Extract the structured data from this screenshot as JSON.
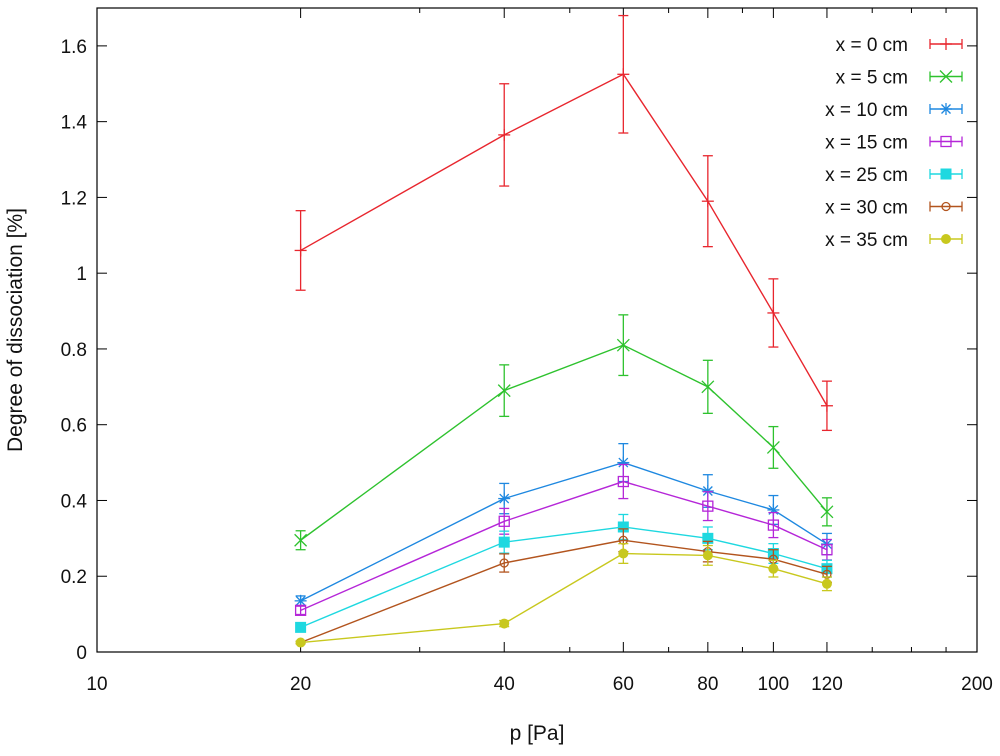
{
  "chart_data": {
    "type": "line",
    "title": "",
    "xlabel": "p [Pa]",
    "ylabel": "Degree of dissociation [%]",
    "x_scale": "log",
    "xlim": [
      10,
      200
    ],
    "ylim": [
      0,
      1.7
    ],
    "x_ticks": [
      10,
      20,
      40,
      60,
      80,
      100,
      120,
      200
    ],
    "x_tick_labels": [
      "10",
      "20",
      "40",
      "60",
      "80",
      "100",
      "120",
      "200"
    ],
    "y_ticks": [
      0,
      0.2,
      0.4,
      0.6,
      0.8,
      1,
      1.2,
      1.4,
      1.6
    ],
    "y_tick_labels": [
      "0",
      "0.2",
      "0.4",
      "0.6",
      "0.8",
      "1",
      "1.2",
      "1.4",
      "1.6"
    ],
    "grid": false,
    "legend_position": "top-right",
    "series": [
      {
        "name": "x = 0 cm",
        "color": "#e8262e",
        "marker": "plus",
        "x": [
          20,
          40,
          60,
          80,
          100,
          120
        ],
        "y": [
          1.06,
          1.365,
          1.525,
          1.19,
          0.895,
          0.65
        ],
        "err": [
          0.105,
          0.135,
          0.155,
          0.12,
          0.09,
          0.065
        ]
      },
      {
        "name": "x = 5 cm",
        "color": "#2ec22e",
        "marker": "x",
        "x": [
          20,
          40,
          60,
          80,
          100,
          120
        ],
        "y": [
          0.295,
          0.69,
          0.81,
          0.7,
          0.54,
          0.37
        ],
        "err": [
          0.025,
          0.068,
          0.08,
          0.07,
          0.055,
          0.037
        ]
      },
      {
        "name": "x = 10 cm",
        "color": "#1e88e0",
        "marker": "star",
        "x": [
          20,
          40,
          60,
          80,
          100,
          120
        ],
        "y": [
          0.135,
          0.405,
          0.5,
          0.425,
          0.375,
          0.285
        ],
        "err": [
          0.013,
          0.04,
          0.05,
          0.043,
          0.038,
          0.028
        ]
      },
      {
        "name": "x = 15 cm",
        "color": "#b526d8",
        "marker": "square-open",
        "x": [
          20,
          40,
          60,
          80,
          100,
          120
        ],
        "y": [
          0.11,
          0.345,
          0.45,
          0.385,
          0.335,
          0.27
        ],
        "err": [
          0.011,
          0.034,
          0.045,
          0.038,
          0.033,
          0.027
        ]
      },
      {
        "name": "x = 25 cm",
        "color": "#1ed8e0",
        "marker": "square-filled",
        "x": [
          20,
          40,
          60,
          80,
          100,
          120
        ],
        "y": [
          0.065,
          0.29,
          0.33,
          0.3,
          0.26,
          0.22
        ],
        "err": [
          0.007,
          0.029,
          0.033,
          0.03,
          0.026,
          0.022
        ]
      },
      {
        "name": "x = 30 cm",
        "color": "#b2541e",
        "marker": "circle-open",
        "x": [
          20,
          40,
          60,
          80,
          100,
          120
        ],
        "y": [
          0.025,
          0.235,
          0.295,
          0.265,
          0.245,
          0.205
        ],
        "err": [
          0.003,
          0.024,
          0.03,
          0.027,
          0.025,
          0.021
        ]
      },
      {
        "name": "x = 35 cm",
        "color": "#c8c81e",
        "marker": "circle-filled",
        "x": [
          20,
          40,
          60,
          80,
          100,
          120
        ],
        "y": [
          0.025,
          0.075,
          0.26,
          0.255,
          0.22,
          0.18
        ],
        "err": [
          0.003,
          0.008,
          0.026,
          0.026,
          0.022,
          0.018
        ]
      }
    ]
  }
}
